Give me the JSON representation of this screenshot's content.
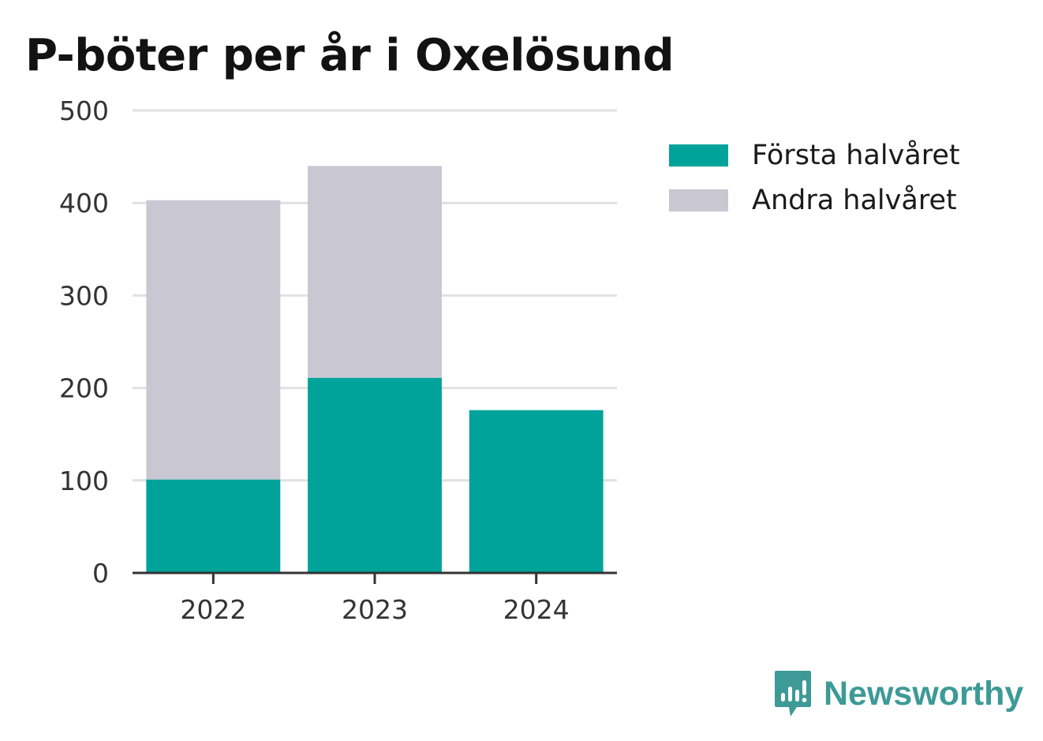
{
  "chart_data": {
    "type": "bar",
    "stacked": true,
    "title": "P-böter per år i Oxelösund",
    "xlabel": "",
    "ylabel": "",
    "categories": [
      "2022",
      "2023",
      "2024"
    ],
    "series": [
      {
        "name": "Första halvåret",
        "color": "#00a39a",
        "values": [
          101,
          211,
          176
        ]
      },
      {
        "name": "Andra halvåret",
        "color": "#c8c7d2",
        "values": [
          302,
          229,
          null
        ]
      }
    ],
    "ylim": [
      0,
      500
    ],
    "yticks": [
      0,
      100,
      200,
      300,
      400,
      500
    ],
    "grid": true,
    "legend_position": "right"
  },
  "branding": {
    "name": "Newsworthy",
    "icon": "chart-bubble-icon",
    "color": "#3d9a96"
  }
}
